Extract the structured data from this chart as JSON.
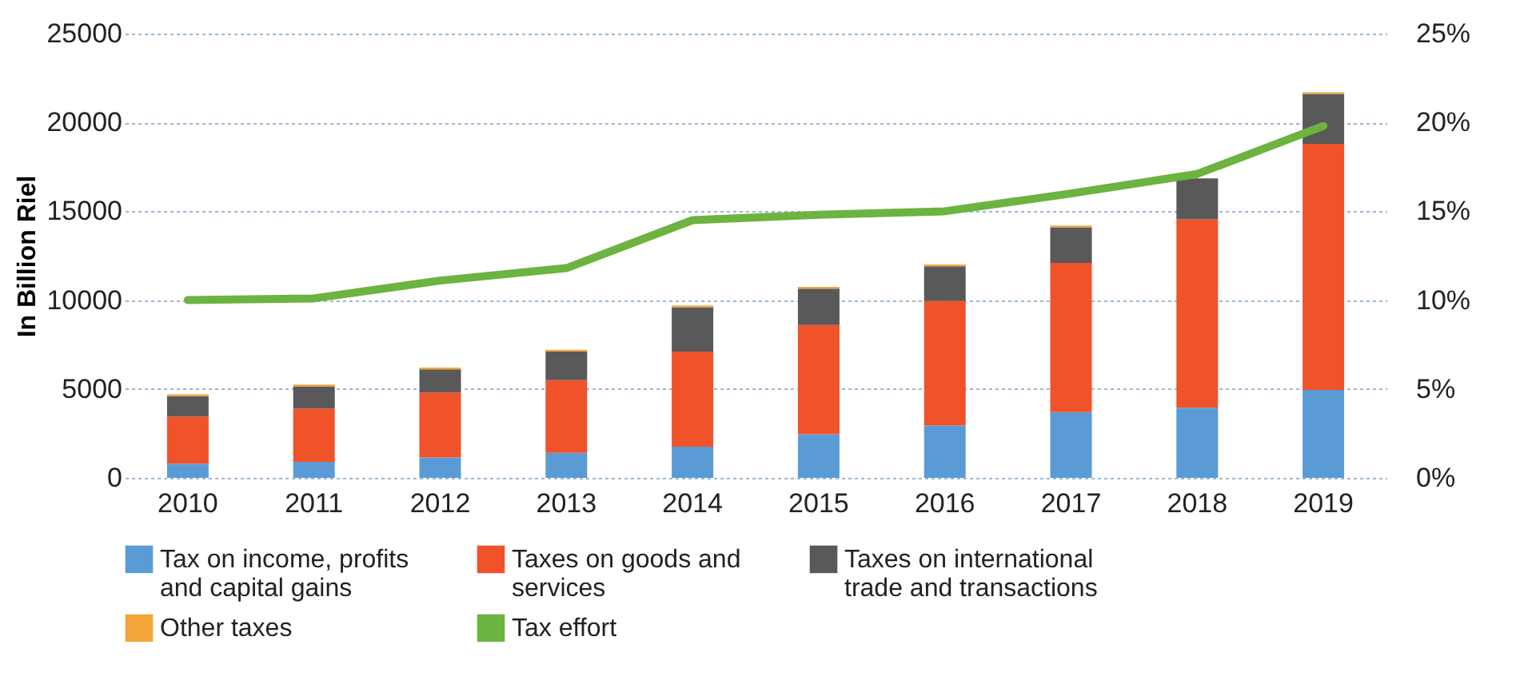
{
  "chart_data": {
    "type": "bar",
    "stacked": true,
    "ylabel": "In Billion Riel",
    "categories": [
      "2010",
      "2011",
      "2012",
      "2013",
      "2014",
      "2015",
      "2016",
      "2017",
      "2018",
      "2019"
    ],
    "series": [
      {
        "name": "Tax on income, profits and capital gains",
        "color": "#5b9bd5",
        "values": [
          800,
          900,
          1150,
          1400,
          1750,
          2450,
          2950,
          3700,
          3950,
          4950
        ]
      },
      {
        "name": "Taxes on goods and services",
        "color": "#f0522a",
        "values": [
          2650,
          3000,
          3650,
          4100,
          5350,
          6150,
          7000,
          8400,
          10600,
          13850
        ]
      },
      {
        "name": "Taxes on international trade and transactions",
        "color": "#595959",
        "values": [
          1150,
          1250,
          1300,
          1600,
          2500,
          2050,
          1950,
          2000,
          2300,
          2800
        ]
      },
      {
        "name": "Other taxes",
        "color": "#f4a53a",
        "values": [
          100,
          100,
          100,
          100,
          100,
          100,
          100,
          100,
          null,
          100
        ]
      },
      {
        "name": "Tax effort",
        "type": "line",
        "axis": "y2",
        "color": "#6cb33f",
        "values": [
          10.0,
          10.1,
          11.1,
          11.8,
          14.5,
          14.8,
          15.0,
          16.0,
          17.1,
          19.8
        ]
      }
    ],
    "ylim": [
      0,
      25000
    ],
    "yticks": [
      0,
      5000,
      10000,
      15000,
      20000,
      25000
    ],
    "y2lim": [
      0,
      25
    ],
    "y2ticks": [
      {
        "value": 0,
        "label": "0%"
      },
      {
        "value": 5,
        "label": "5%"
      },
      {
        "value": 10,
        "label": "10%"
      },
      {
        "value": 15,
        "label": "15%"
      },
      {
        "value": 20,
        "label": "20%"
      },
      {
        "value": 25,
        "label": "25%"
      }
    ],
    "grid": "y",
    "legend": "bottom"
  }
}
